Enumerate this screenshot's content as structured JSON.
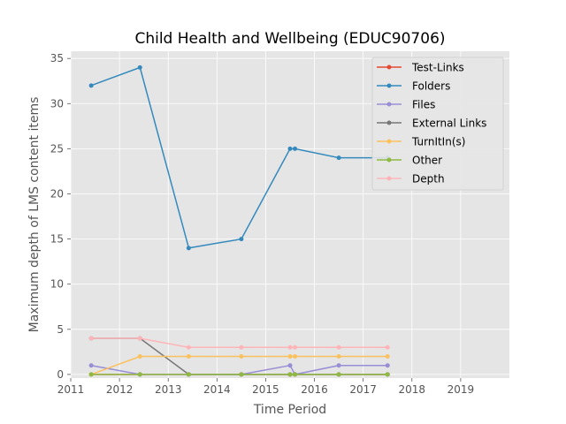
{
  "chart_data": {
    "type": "line",
    "title": "Child Health and Wellbeing (EDUC90706)",
    "xlabel": "Time Period",
    "ylabel": "Maximum depth of LMS content items",
    "xlim": [
      2011.0,
      2020.0
    ],
    "ylim": [
      -0.4,
      35.8
    ],
    "xticks": [
      2011,
      2012,
      2013,
      2014,
      2015,
      2016,
      2017,
      2018,
      2019
    ],
    "yticks": [
      0,
      5,
      10,
      15,
      20,
      25,
      30,
      35
    ],
    "grid": true,
    "legend_position": "top-right",
    "x": [
      2011.42,
      2012.42,
      2013.42,
      2014.5,
      2015.5,
      2015.6,
      2016.5,
      2017.5
    ],
    "series": [
      {
        "name": "Test-Links",
        "color": "#E24A33",
        "values": [
          0,
          0,
          0,
          0,
          0,
          0,
          0,
          0
        ]
      },
      {
        "name": "Folders",
        "color": "#348ABD",
        "values": [
          32,
          34,
          14,
          15,
          25,
          25,
          24,
          24
        ]
      },
      {
        "name": "Files",
        "color": "#988ED5",
        "values": [
          1,
          0,
          0,
          0,
          1,
          0,
          1,
          1
        ]
      },
      {
        "name": "External Links",
        "color": "#777777",
        "values": [
          4,
          4,
          0,
          0,
          0,
          0,
          0,
          0
        ]
      },
      {
        "name": "TurnItIn(s)",
        "color": "#FBC15E",
        "values": [
          0,
          2,
          2,
          2,
          2,
          2,
          2,
          2
        ]
      },
      {
        "name": "Other",
        "color": "#8EBA42",
        "values": [
          0,
          0,
          0,
          0,
          0,
          0,
          0,
          0
        ]
      },
      {
        "name": "Depth",
        "color": "#FFB5B8",
        "values": [
          4,
          4,
          3,
          3,
          3,
          3,
          3,
          3
        ]
      }
    ],
    "style": {
      "plot_background": "#E5E5E5",
      "grid_color": "#FFFFFF",
      "text_color": "#555555"
    }
  }
}
